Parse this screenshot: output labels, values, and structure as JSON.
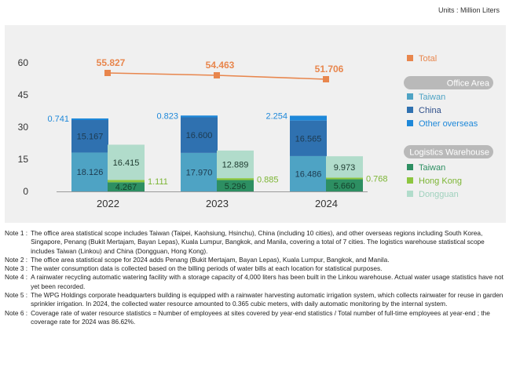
{
  "units": "Units : Million Liters",
  "colors": {
    "taiwan_office": "#4ea3c4",
    "china_office": "#2f71b0",
    "other_overseas": "#1e88d9",
    "taiwan_lw": "#2d8f62",
    "hongkong_lw": "#8dc63f",
    "dongguan_lw": "#b1dccb",
    "total": "#e8864d",
    "panel": "#f0f0f0",
    "group_header": "#b9b9b9"
  },
  "chart_data": {
    "type": "bar",
    "subtype": "stacked-grouped-with-line",
    "categories": [
      "2022",
      "2023",
      "2024"
    ],
    "ylim": [
      0,
      60
    ],
    "yticks": [
      "0",
      "15",
      "30",
      "45",
      "60"
    ],
    "office_area": {
      "header": "Office Area",
      "series": [
        {
          "name": "Taiwan",
          "values": [
            18.126,
            17.97,
            16.486
          ],
          "labels": [
            "18.126",
            "17.970",
            "16.486"
          ]
        },
        {
          "name": "China",
          "values": [
            15.167,
            16.6,
            16.565
          ],
          "labels": [
            "15.167",
            "16.600",
            "16.565"
          ]
        },
        {
          "name": "Other overseas",
          "values": [
            0.741,
            0.823,
            2.254
          ],
          "labels": [
            "0.741",
            "0.823",
            "2.254"
          ]
        }
      ]
    },
    "logistics_warehouse": {
      "header": "Logistics Warehouse",
      "series": [
        {
          "name": "Taiwan",
          "values": [
            4.267,
            5.296,
            5.66
          ],
          "labels": [
            "4.267",
            "5.296",
            "5.660"
          ]
        },
        {
          "name": "Hong Kong",
          "values": [
            1.111,
            0.885,
            0.768
          ],
          "labels": [
            "1.111",
            "0.885",
            "0.768"
          ]
        },
        {
          "name": "Dongguan",
          "values": [
            16.415,
            12.889,
            9.973
          ],
          "labels": [
            "16.415",
            "12.889",
            "9.973"
          ]
        }
      ]
    },
    "total": {
      "name": "Total",
      "values": [
        55.827,
        54.463,
        51.706
      ],
      "labels": [
        "55.827",
        "54.463",
        "51.706"
      ]
    }
  },
  "notes": [
    {
      "label": "Note 1 :",
      "text": "The office area statistical scope includes Taiwan (Taipei, Kaohsiung, Hsinchu), China (including 10 cities), and other overseas regions including South Korea, Singapore, Penang (Bukit Mertajam, Bayan Lepas), Kuala Lumpur, Bangkok, and Manila, covering a total of 7 cities. The logistics warehouse statistical scope includes Taiwan (Linkou) and China (Dongguan, Hong Kong)."
    },
    {
      "label": "Note 2 :",
      "text": "The office area statistical scope for 2024 adds Penang (Bukit Mertajam, Bayan Lepas), Kuala Lumpur, Bangkok, and Manila."
    },
    {
      "label": "Note 3 :",
      "text": "The water consumption data is collected based on the billing periods of water bills at each location for statistical purposes."
    },
    {
      "label": "Note 4 :",
      "text": "A rainwater recycling automatic watering facility with a storage capacity of 4,000 liters has been built in the Linkou warehouse. Actual water usage statistics have not yet been recorded."
    },
    {
      "label": "Note 5 :",
      "text": "The WPG Holdings corporate headquarters building is equipped with a rainwater harvesting automatic irrigation system, which collects rainwater for reuse in garden sprinkler irrigation. In 2024, the collected water resource amounted to 0.365 cubic meters, with daily automatic monitoring by the internal system."
    },
    {
      "label": "Note 6 :",
      "text": "Coverage rate of water resource statistics = Number of employees at sites covered by year-end statistics / Total number of full-time employees at year-end ; the coverage rate for 2024 was 86.62%."
    }
  ]
}
